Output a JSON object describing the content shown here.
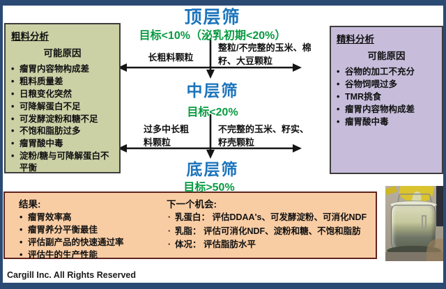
{
  "colors": {
    "frame": "#2a4a74",
    "sieve_title": "#1b74bc",
    "target_green": "#079a40",
    "forage_bg": "#cbd1a5",
    "concentrate_bg": "#c7bddb",
    "results_bg": "#f9cda4",
    "results_border": "#5f241c",
    "arrow": "#151515"
  },
  "top_sieve": {
    "title": "顶层筛",
    "target": "目标<10%（泌乳初期<20%）",
    "left_branch_label": "长粗料颗粒",
    "right_branch_label": "整粒/不完整的玉米、棉籽、大豆颗粒"
  },
  "mid_sieve": {
    "title": "中层筛",
    "target": "目标<20%",
    "left_branch_label": "过多中长粗料颗粒",
    "right_branch_label": "不完整的玉米、籽实、籽壳颗粒"
  },
  "bottom_sieve": {
    "title": "底层筛",
    "target": "目标>50%"
  },
  "forage_box": {
    "title": "粗料分析",
    "subtitle": "可能原因",
    "items": [
      "瘤胃内容物构成差",
      "粗料质量差",
      "日粮变化突然",
      "可降解蛋白不足",
      "可发酵淀粉和糖不足",
      "不饱和脂肪过多",
      "瘤胃酸中毒",
      "淀粉/糖与可降解蛋白不平衡"
    ]
  },
  "concentrate_box": {
    "title": "精料分析",
    "subtitle": "可能原因",
    "items": [
      "谷物的加工不充分",
      "谷物饲喂过多",
      "TMR挑食",
      "瘤胃内容物构成差",
      "瘤胃酸中毒"
    ]
  },
  "results": {
    "title": "结果:",
    "items": [
      "瘤胃效率高",
      "瘤胃养分平衡最佳",
      "评估副产品的快速通过率",
      "评估牛的生产性能"
    ]
  },
  "opportunities": {
    "title": "下一个机会:",
    "items": [
      "乳蛋白： 评估DDAA's、可发酵淀粉、可消化NDF",
      "乳脂： 评估可消化NDF、淀粉和糖、不饱和脂肪",
      "体况： 评估脂肪水平"
    ]
  },
  "footer": {
    "copyright": "Cargill Inc. All Rights Reserved"
  }
}
